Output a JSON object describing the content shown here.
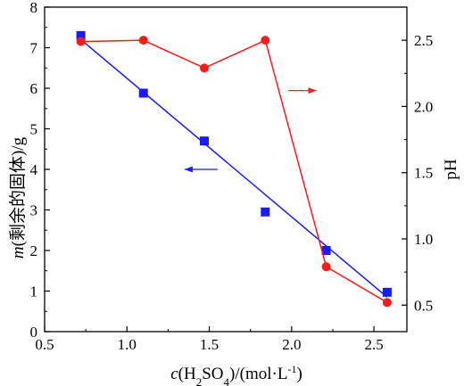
{
  "chart_data": {
    "type": "scatter",
    "x_axis": {
      "label_var": "c",
      "label_rest": "(H2SO4)/(mol·L-1)",
      "range": [
        0.5,
        2.7
      ],
      "ticks": [
        "0.5",
        "1.0",
        "1.5",
        "2.0",
        "2.5"
      ]
    },
    "y_left": {
      "label_var": "m",
      "label_rest": "(剩余的固体)/g",
      "range": [
        0,
        8
      ],
      "ticks": [
        "0",
        "1",
        "2",
        "3",
        "4",
        "5",
        "6",
        "7",
        "8"
      ]
    },
    "y_right": {
      "label": "pH",
      "range": [
        0.3,
        2.75
      ],
      "ticks": [
        "0.5",
        "1.0",
        "1.5",
        "2.0",
        "2.5"
      ]
    },
    "series": [
      {
        "axis": "left",
        "marker": "square",
        "color": "#1a1aff",
        "x": [
          0.72,
          1.1,
          1.47,
          1.84,
          2.21,
          2.58
        ],
        "y": [
          7.3,
          5.88,
          4.7,
          2.95,
          2.0,
          0.97
        ]
      },
      {
        "axis": "right",
        "marker": "circle",
        "color": "#ff1a1a",
        "x": [
          0.72,
          1.1,
          1.47,
          1.84,
          2.21,
          2.58
        ],
        "y": [
          2.49,
          2.5,
          2.29,
          2.5,
          0.79,
          0.52
        ]
      }
    ],
    "fit_line": {
      "axis": "left",
      "color": "#1a1aff",
      "x": [
        0.72,
        2.58
      ],
      "y": [
        7.2,
        0.85
      ]
    },
    "annotations": [
      {
        "type": "arrow",
        "direction": "left",
        "color": "#1a1aff",
        "x": [
          1.35,
          1.55
        ],
        "y_axis": "left",
        "y": 4.0
      },
      {
        "type": "arrow",
        "direction": "right",
        "color": "#ff1a1a",
        "x": [
          1.98,
          2.15
        ],
        "y_axis": "right",
        "y": 2.12
      }
    ]
  }
}
